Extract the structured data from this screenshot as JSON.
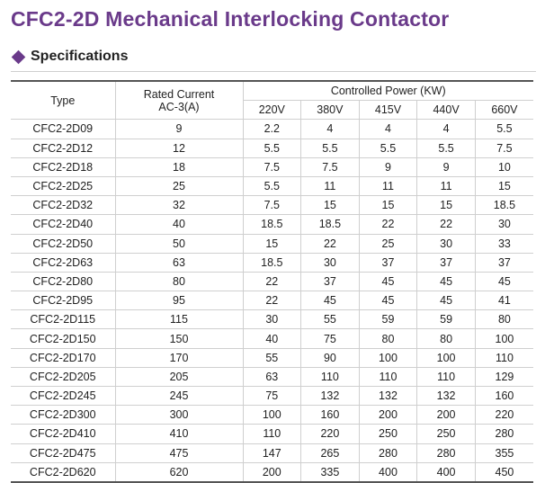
{
  "title": "CFC2-2D Mechanical Interlocking Contactor",
  "section": "Specifications",
  "accent_color": "#6a3a8a",
  "table": {
    "type_header": "Type",
    "rated_header_line1": "Rated Current",
    "rated_header_line2": "AC-3(A)",
    "power_header": "Controlled Power (KW)",
    "voltages": [
      "220V",
      "380V",
      "415V",
      "440V",
      "660V"
    ],
    "rows": [
      {
        "type": "CFC2-2D09",
        "rated": "9",
        "power": [
          "2.2",
          "4",
          "4",
          "4",
          "5.5"
        ]
      },
      {
        "type": "CFC2-2D12",
        "rated": "12",
        "power": [
          "5.5",
          "5.5",
          "5.5",
          "5.5",
          "7.5"
        ]
      },
      {
        "type": "CFC2-2D18",
        "rated": "18",
        "power": [
          "7.5",
          "7.5",
          "9",
          "9",
          "10"
        ]
      },
      {
        "type": "CFC2-2D25",
        "rated": "25",
        "power": [
          "5.5",
          "11",
          "11",
          "11",
          "15"
        ]
      },
      {
        "type": "CFC2-2D32",
        "rated": "32",
        "power": [
          "7.5",
          "15",
          "15",
          "15",
          "18.5"
        ]
      },
      {
        "type": "CFC2-2D40",
        "rated": "40",
        "power": [
          "18.5",
          "18.5",
          "22",
          "22",
          "30"
        ]
      },
      {
        "type": "CFC2-2D50",
        "rated": "50",
        "power": [
          "15",
          "22",
          "25",
          "30",
          "33"
        ]
      },
      {
        "type": "CFC2-2D63",
        "rated": "63",
        "power": [
          "18.5",
          "30",
          "37",
          "37",
          "37"
        ]
      },
      {
        "type": "CFC2-2D80",
        "rated": "80",
        "power": [
          "22",
          "37",
          "45",
          "45",
          "45"
        ]
      },
      {
        "type": "CFC2-2D95",
        "rated": "95",
        "power": [
          "22",
          "45",
          "45",
          "45",
          "41"
        ]
      },
      {
        "type": "CFC2-2D115",
        "rated": "115",
        "power": [
          "30",
          "55",
          "59",
          "59",
          "80"
        ]
      },
      {
        "type": "CFC2-2D150",
        "rated": "150",
        "power": [
          "40",
          "75",
          "80",
          "80",
          "100"
        ]
      },
      {
        "type": "CFC2-2D170",
        "rated": "170",
        "power": [
          "55",
          "90",
          "100",
          "100",
          "110"
        ]
      },
      {
        "type": "CFC2-2D205",
        "rated": "205",
        "power": [
          "63",
          "110",
          "110",
          "110",
          "129"
        ]
      },
      {
        "type": "CFC2-2D245",
        "rated": "245",
        "power": [
          "75",
          "132",
          "132",
          "132",
          "160"
        ]
      },
      {
        "type": "CFC2-2D300",
        "rated": "300",
        "power": [
          "100",
          "160",
          "200",
          "200",
          "220"
        ]
      },
      {
        "type": "CFC2-2D410",
        "rated": "410",
        "power": [
          "110",
          "220",
          "250",
          "250",
          "280"
        ]
      },
      {
        "type": "CFC2-2D475",
        "rated": "475",
        "power": [
          "147",
          "265",
          "280",
          "280",
          "355"
        ]
      },
      {
        "type": "CFC2-2D620",
        "rated": "620",
        "power": [
          "200",
          "335",
          "400",
          "400",
          "450"
        ]
      }
    ]
  }
}
